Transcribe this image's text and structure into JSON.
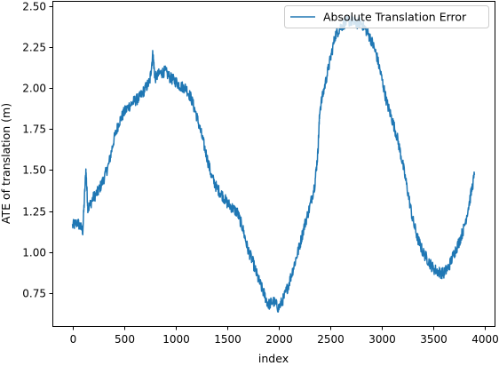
{
  "chart_data": {
    "type": "line",
    "title": "",
    "xlabel": "index",
    "ylabel": "ATE of translation (m)",
    "xlim": [
      -195,
      4095
    ],
    "ylim": [
      0.55,
      2.53
    ],
    "xticks": [
      0,
      500,
      1000,
      1500,
      2000,
      2500,
      3000,
      3500,
      4000
    ],
    "yticks": [
      0.75,
      1.0,
      1.25,
      1.5,
      1.75,
      2.0,
      2.25,
      2.5
    ],
    "ytick_labels": [
      "0.75",
      "1.00",
      "1.25",
      "1.50",
      "1.75",
      "2.00",
      "2.25",
      "2.50"
    ],
    "grid": false,
    "legend_position": "top-right",
    "series": [
      {
        "name": "Absolute Translation Error",
        "color": "#1f77b4",
        "x": [
          0,
          50,
          100,
          130,
          150,
          200,
          250,
          300,
          350,
          400,
          450,
          500,
          550,
          600,
          650,
          700,
          750,
          780,
          800,
          850,
          900,
          950,
          1000,
          1050,
          1100,
          1150,
          1200,
          1250,
          1300,
          1350,
          1400,
          1450,
          1500,
          1550,
          1600,
          1650,
          1700,
          1750,
          1800,
          1850,
          1900,
          1950,
          2000,
          2050,
          2100,
          2150,
          2200,
          2250,
          2300,
          2350,
          2380,
          2400,
          2450,
          2500,
          2550,
          2600,
          2650,
          2700,
          2750,
          2800,
          2850,
          2900,
          2950,
          3000,
          3050,
          3100,
          3150,
          3200,
          3250,
          3300,
          3350,
          3400,
          3450,
          3500,
          3550,
          3600,
          3650,
          3700,
          3750,
          3800,
          3850,
          3900
        ],
        "y": [
          1.16,
          1.18,
          1.13,
          1.5,
          1.26,
          1.33,
          1.37,
          1.44,
          1.53,
          1.68,
          1.79,
          1.85,
          1.89,
          1.92,
          1.94,
          1.99,
          2.04,
          2.21,
          2.06,
          2.09,
          2.1,
          2.06,
          2.04,
          2.01,
          2.0,
          1.94,
          1.84,
          1.72,
          1.59,
          1.46,
          1.39,
          1.35,
          1.3,
          1.27,
          1.24,
          1.15,
          1.02,
          0.94,
          0.84,
          0.76,
          0.68,
          0.7,
          0.66,
          0.72,
          0.81,
          0.92,
          1.03,
          1.16,
          1.27,
          1.41,
          1.6,
          1.87,
          2.02,
          2.17,
          2.32,
          2.37,
          2.4,
          2.41,
          2.39,
          2.4,
          2.35,
          2.29,
          2.2,
          2.06,
          1.91,
          1.81,
          1.7,
          1.55,
          1.38,
          1.2,
          1.08,
          1.0,
          0.95,
          0.9,
          0.88,
          0.87,
          0.91,
          0.99,
          1.06,
          1.15,
          1.3,
          1.47
        ]
      }
    ]
  }
}
